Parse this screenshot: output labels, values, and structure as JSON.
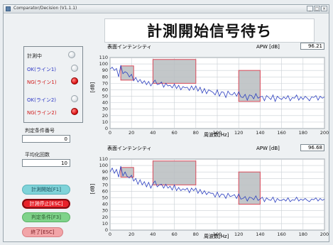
{
  "window": {
    "title": "Comparator/Decision (V1.1.1)",
    "buttons": [
      "_",
      "□",
      "×"
    ]
  },
  "banner": {
    "text": "計測開始信号待ち"
  },
  "status": {
    "rows": [
      {
        "label": "計測中",
        "color": "#222222",
        "state": "off"
      },
      {
        "label": "OK(ライン1)",
        "color": "#2a35c4",
        "state": "off"
      },
      {
        "label": "NG(ライン1)",
        "color": "#d01818",
        "state": "on"
      },
      {
        "label": "OK(ライン2)",
        "color": "#2a35c4",
        "state": "off"
      },
      {
        "label": "NG(ライン2)",
        "color": "#d01818",
        "state": "on"
      }
    ]
  },
  "fields": {
    "condition_no_label": "判定条件番号",
    "condition_no_value": "0",
    "averaging_label": "平均化回数",
    "averaging_value": "10"
  },
  "buttons": {
    "start": "計測開始[F1]",
    "stop": "計測停止[ESC]",
    "condition": "判定条件[F3]",
    "end": "終了[ESC]"
  },
  "panels": [
    {
      "title": "表面インテンシティ",
      "apw_label": "APW [dB]",
      "apw_value": "96.21",
      "ylabel": "[dB]",
      "xlabel": "周波数[Hz]"
    },
    {
      "title": "表面インテンシティ",
      "apw_label": "APW [dB]",
      "apw_value": "96.68",
      "ylabel": "[dB]",
      "xlabel": "周波数[Hz]"
    }
  ],
  "chart_data": [
    {
      "type": "line",
      "title": "表面インテンシティ",
      "xlabel": "周波数[Hz]",
      "ylabel": "[dB]",
      "xlim": [
        0,
        200
      ],
      "ylim": [
        0,
        110
      ],
      "xticks": [
        0,
        20,
        40,
        60,
        80,
        100,
        120,
        140,
        160,
        180,
        200
      ],
      "yticks": [
        0,
        10,
        20,
        30,
        40,
        50,
        60,
        70,
        80,
        90,
        100,
        110
      ],
      "grid": true,
      "threshold_boxes": [
        {
          "x0": 10,
          "x1": 22,
          "y0": 75,
          "y1": 97
        },
        {
          "x0": 40,
          "x1": 80,
          "y0": 70,
          "y1": 107
        },
        {
          "x0": 120,
          "x1": 140,
          "y0": 42,
          "y1": 90
        }
      ],
      "series": [
        {
          "color": "#2c3fc0",
          "x": [
            0,
            2,
            4,
            6,
            8,
            10,
            12,
            14,
            16,
            18,
            20,
            22,
            24,
            26,
            28,
            30,
            32,
            34,
            36,
            38,
            40,
            42,
            44,
            46,
            48,
            50,
            52,
            54,
            56,
            58,
            60,
            62,
            64,
            66,
            68,
            70,
            72,
            74,
            76,
            78,
            80,
            82,
            84,
            86,
            88,
            90,
            92,
            94,
            96,
            98,
            100,
            102,
            104,
            106,
            108,
            110,
            112,
            114,
            116,
            118,
            120,
            122,
            124,
            126,
            128,
            130,
            132,
            134,
            136,
            138,
            140,
            142,
            144,
            146,
            148,
            150,
            152,
            154,
            156,
            158,
            160,
            162,
            164,
            166,
            168,
            170,
            172,
            174,
            176,
            178,
            180,
            182,
            184,
            186,
            188,
            190,
            192,
            194,
            196,
            198,
            200
          ],
          "values": [
            92,
            95,
            90,
            93,
            80,
            98,
            85,
            88,
            86,
            80,
            84,
            74,
            79,
            72,
            76,
            70,
            74,
            68,
            73,
            66,
            71,
            75,
            68,
            69,
            72,
            64,
            70,
            66,
            67,
            63,
            69,
            62,
            67,
            60,
            65,
            63,
            64,
            59,
            66,
            60,
            66,
            58,
            64,
            55,
            62,
            54,
            60,
            58,
            56,
            52,
            60,
            50,
            57,
            56,
            48,
            58,
            53,
            52,
            56,
            50,
            57,
            49,
            48,
            53,
            44,
            52,
            51,
            46,
            54,
            47,
            49,
            50,
            43,
            51,
            48,
            45,
            52,
            42,
            50,
            47,
            45,
            49,
            46,
            51,
            43,
            48,
            47,
            52,
            44,
            49,
            45,
            50,
            47,
            43,
            49,
            48,
            51,
            44,
            50,
            47,
            49
          ]
        }
      ]
    },
    {
      "type": "line",
      "title": "表面インテンシティ",
      "xlabel": "周波数[Hz]",
      "ylabel": "[dB]",
      "xlim": [
        0,
        200
      ],
      "ylim": [
        0,
        110
      ],
      "xticks": [
        0,
        20,
        40,
        60,
        80,
        100,
        120,
        140,
        160,
        180,
        200
      ],
      "yticks": [
        0,
        10,
        20,
        30,
        40,
        50,
        60,
        70,
        80,
        90,
        100,
        110
      ],
      "grid": true,
      "threshold_boxes": [
        {
          "x0": 10,
          "x1": 22,
          "y0": 82,
          "y1": 97
        },
        {
          "x0": 40,
          "x1": 80,
          "y0": 70,
          "y1": 107
        },
        {
          "x0": 120,
          "x1": 140,
          "y0": 40,
          "y1": 90
        }
      ],
      "series": [
        {
          "color": "#2c3fc0",
          "x": [
            0,
            2,
            4,
            6,
            8,
            10,
            12,
            14,
            16,
            18,
            20,
            22,
            24,
            26,
            28,
            30,
            32,
            34,
            36,
            38,
            40,
            42,
            44,
            46,
            48,
            50,
            52,
            54,
            56,
            58,
            60,
            62,
            64,
            66,
            68,
            70,
            72,
            74,
            76,
            78,
            80,
            82,
            84,
            86,
            88,
            90,
            92,
            94,
            96,
            98,
            100,
            102,
            104,
            106,
            108,
            110,
            112,
            114,
            116,
            118,
            120,
            122,
            124,
            126,
            128,
            130,
            132,
            134,
            136,
            138,
            140,
            142,
            144,
            146,
            148,
            150,
            152,
            154,
            156,
            158,
            160,
            162,
            164,
            166,
            168,
            170,
            172,
            174,
            176,
            178,
            180,
            182,
            184,
            186,
            188,
            190,
            192,
            194,
            196,
            198,
            200
          ],
          "values": [
            90,
            96,
            88,
            94,
            82,
            99,
            84,
            90,
            83,
            81,
            85,
            76,
            80,
            71,
            78,
            70,
            75,
            67,
            74,
            65,
            72,
            76,
            67,
            70,
            71,
            65,
            71,
            65,
            68,
            62,
            70,
            61,
            66,
            61,
            64,
            62,
            65,
            58,
            65,
            61,
            65,
            57,
            63,
            56,
            61,
            55,
            59,
            57,
            57,
            51,
            59,
            51,
            56,
            55,
            49,
            57,
            52,
            53,
            55,
            49,
            56,
            48,
            49,
            52,
            45,
            51,
            50,
            47,
            53,
            46,
            48,
            51,
            44,
            50,
            47,
            46,
            51,
            43,
            49,
            46,
            46,
            48,
            45,
            50,
            44,
            47,
            46,
            51,
            45,
            48,
            46,
            49,
            46,
            44,
            48,
            47,
            50,
            45,
            49,
            46,
            48
          ]
        }
      ]
    }
  ]
}
